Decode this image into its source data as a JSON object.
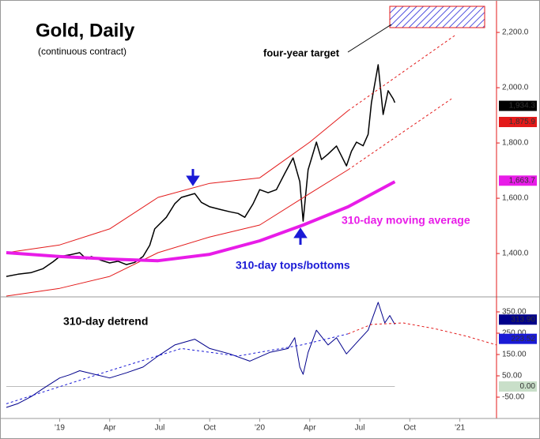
{
  "chart_data": [
    {
      "type": "line",
      "title": "Gold, Daily",
      "subtitle": "(continuous contract)",
      "annotations": [
        {
          "text": "four-year target",
          "color": "#000"
        },
        {
          "text": "310-day moving average",
          "color": "#e81ce8"
        },
        {
          "text": "310-day tops/bottoms",
          "color": "#1a1ad6"
        }
      ],
      "xlim": [
        -3.2,
        26.2
      ],
      "ylim": [
        1246,
        2303
      ],
      "yticks": [
        {
          "value": 1400,
          "label": "1,400.0"
        },
        {
          "value": 1600,
          "label": "1,600.0"
        },
        {
          "value": 1800,
          "label": "1,800.0"
        },
        {
          "value": 2000,
          "label": "2,000.0"
        },
        {
          "value": 2200,
          "label": "2,200.0"
        }
      ],
      "series": [
        {
          "color": "#000000",
          "width": 1.5,
          "x": [
            -3.2,
            -2.5,
            -1.7,
            -1.0,
            -0.4,
            0,
            0.6,
            1.2,
            1.6,
            1.9,
            2.5,
            3.0,
            3.5,
            4.0,
            4.5,
            5.0,
            5.4,
            5.7,
            6.4,
            6.9,
            7.3,
            8.1,
            8.5,
            9.0,
            9.6,
            10.2,
            10.7,
            11.1,
            11.6,
            12.0,
            12.5,
            13.0,
            13.5,
            14.0,
            14.4,
            14.6,
            14.9,
            15.4,
            15.7,
            16.1,
            16.6,
            17.2,
            17.5,
            17.8,
            18.2,
            18.5,
            18.7,
            19.1,
            19.4,
            19.7,
            20.0,
            20.1
          ],
          "values": [
            1317,
            1325,
            1331,
            1345,
            1370,
            1389,
            1395,
            1403,
            1380,
            1389,
            1375,
            1366,
            1372,
            1360,
            1368,
            1389,
            1430,
            1489,
            1531,
            1580,
            1603,
            1617,
            1585,
            1569,
            1560,
            1551,
            1545,
            1531,
            1580,
            1631,
            1620,
            1631,
            1690,
            1746,
            1660,
            1517,
            1703,
            1803,
            1740,
            1760,
            1789,
            1717,
            1770,
            1803,
            1790,
            1831,
            1946,
            2083,
            1903,
            1989,
            1960,
            1946
          ]
        },
        {
          "color": "#e31a1a",
          "width": 1,
          "x": [
            -3.2,
            0,
            3.0,
            5.9,
            9.0,
            12.0,
            15.0,
            17.3
          ],
          "values": [
            1403,
            1431,
            1489,
            1603,
            1654,
            1674,
            1803,
            1917
          ]
        },
        {
          "color": "#e31a1a",
          "width": 1,
          "dashed": true,
          "x": [
            17.3,
            23.7
          ],
          "values": [
            1917,
            2189
          ]
        },
        {
          "color": "#e31a1a",
          "width": 1,
          "x": [
            -3.2,
            0,
            3.0,
            5.9,
            9.0,
            12.0,
            15.0,
            17.3
          ],
          "values": [
            1246,
            1274,
            1317,
            1403,
            1460,
            1503,
            1617,
            1703
          ]
        },
        {
          "color": "#e31a1a",
          "width": 1,
          "dashed": true,
          "x": [
            17.3,
            23.5
          ],
          "values": [
            1703,
            1960
          ]
        },
        {
          "color": "#e81ce8",
          "width": 4,
          "x": [
            -3.2,
            0,
            3.0,
            5.9,
            9.0,
            12.0,
            14.6,
            17.3,
            20.1
          ],
          "values": [
            1403,
            1389,
            1380,
            1374,
            1397,
            1446,
            1503,
            1569,
            1660
          ]
        }
      ],
      "value_boxes": [
        {
          "value": 1934.3,
          "label": "1,934.3",
          "color": "#000000"
        },
        {
          "value": 1875.9,
          "label": "1,875.9",
          "color": "#e31a1a"
        },
        {
          "value": 1663.7,
          "label": "1,663.7",
          "color": "#e81ce8"
        }
      ]
    },
    {
      "type": "line",
      "annotations": [
        {
          "text": "310-day detrend",
          "color": "#000"
        }
      ],
      "xlim": [
        -3.2,
        26.2
      ],
      "ylim": [
        -150,
        413
      ],
      "xticks": [
        {
          "value": 0,
          "label": "'19"
        },
        {
          "value": 3,
          "label": "Apr"
        },
        {
          "value": 6,
          "label": "Jul"
        },
        {
          "value": 9,
          "label": "Oct"
        },
        {
          "value": 12,
          "label": "'20"
        },
        {
          "value": 15,
          "label": "Apr"
        },
        {
          "value": 18,
          "label": "Jul"
        },
        {
          "value": 21,
          "label": "Oct"
        },
        {
          "value": 24,
          "label": "'21"
        }
      ],
      "yticks": [
        {
          "value": -50,
          "label": "-50.00"
        },
        {
          "value": 50,
          "label": "50.00"
        },
        {
          "value": 150,
          "label": "150.00"
        },
        {
          "value": 250,
          "label": "250.00"
        },
        {
          "value": 350,
          "label": "350.00"
        }
      ],
      "series": [
        {
          "color": "#00008b",
          "width": 1,
          "x": [
            -3.2,
            -2.5,
            -1.7,
            -1.0,
            0,
            0.6,
            1.2,
            2.1,
            3.0,
            4.0,
            5.0,
            5.9,
            6.9,
            8.1,
            9.0,
            10.2,
            11.4,
            12.6,
            13.7,
            14.1,
            14.4,
            14.6,
            14.9,
            15.4,
            16.1,
            16.6,
            17.2,
            18.0,
            18.5,
            19.1,
            19.5,
            19.8,
            20.1
          ],
          "values": [
            -98,
            -80,
            -47,
            -10,
            40,
            55,
            74,
            57,
            40,
            64,
            91,
            143,
            195,
            222,
            178,
            153,
            119,
            160,
            178,
            229,
            91,
            57,
            160,
            264,
            195,
            229,
            153,
            222,
            264,
            395,
            298,
            333,
            291
          ]
        },
        {
          "color": "#1a1ad6",
          "width": 1,
          "dashed": true,
          "x": [
            -3.2,
            3.0,
            7.3,
            10.7,
            14.5,
            17.3
          ],
          "values": [
            -81,
            74,
            178,
            143,
            195,
            247
          ]
        },
        {
          "color": "#e31a1a",
          "width": 1,
          "dashed": true,
          "x": [
            17.3,
            18.7,
            20.6,
            22.5,
            24.4,
            26.2
          ],
          "values": [
            247,
            291,
            298,
            271,
            236,
            195
          ]
        }
      ],
      "value_boxes": [
        {
          "value": 313.9,
          "label": "313.90",
          "color": "#00008b"
        },
        {
          "value": 223.52,
          "label": "223.52",
          "color": "#1a1ad6"
        },
        {
          "value": 0,
          "label": "0.00",
          "color": "#c9dfc9"
        }
      ]
    }
  ]
}
